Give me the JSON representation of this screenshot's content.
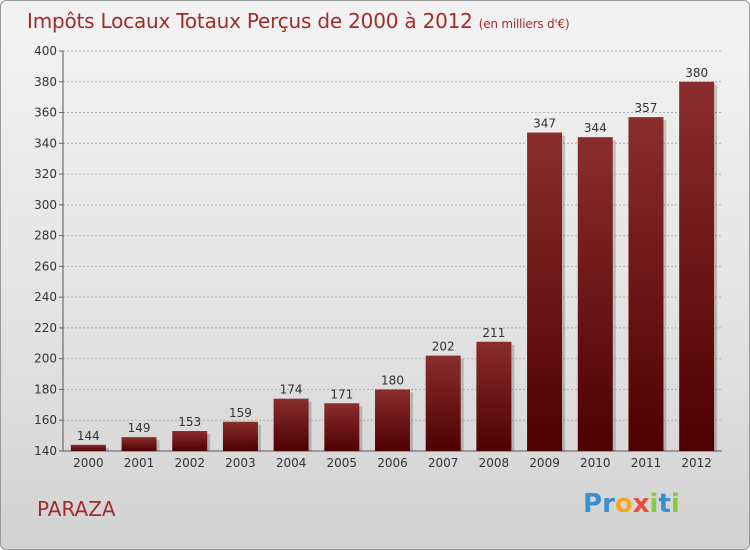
{
  "header": {
    "title": "Impôts Locaux Totaux Perçus de 2000 à 2012",
    "unit_note": "(en milliers d'€)"
  },
  "commune": "PARAZA",
  "logo": {
    "text": "Proxiti",
    "letters": [
      "P",
      "r",
      "o",
      "x",
      "i",
      "t",
      "i"
    ],
    "letter_colors": [
      "#3a8fd0",
      "#3a8fd0",
      "#f5a623",
      "#e94e3c",
      "#8dc63f",
      "#3a8fd0",
      "#8dc63f"
    ]
  },
  "colors": {
    "title": "#a52a2a",
    "bar_top": "#8a2d2d",
    "bar_bottom": "#4e0000",
    "grid": "#b0b0b0"
  },
  "chart_data": {
    "type": "bar",
    "categories": [
      "2000",
      "2001",
      "2002",
      "2003",
      "2004",
      "2005",
      "2006",
      "2007",
      "2008",
      "2009",
      "2010",
      "2011",
      "2012"
    ],
    "values": [
      144,
      149,
      153,
      159,
      174,
      171,
      180,
      202,
      211,
      347,
      344,
      357,
      380
    ],
    "data_labels": [
      "144",
      "149",
      "153",
      "159",
      "174",
      "171",
      "180",
      "202",
      "211",
      "347",
      "344",
      "357",
      "380"
    ],
    "title": "Impôts Locaux Totaux Perçus de 2000 à 2012",
    "xlabel": "",
    "ylabel": "",
    "ylim": [
      140,
      400
    ],
    "yticks": [
      140,
      160,
      180,
      200,
      220,
      240,
      260,
      280,
      300,
      320,
      340,
      360,
      380,
      400
    ],
    "grid": true
  }
}
